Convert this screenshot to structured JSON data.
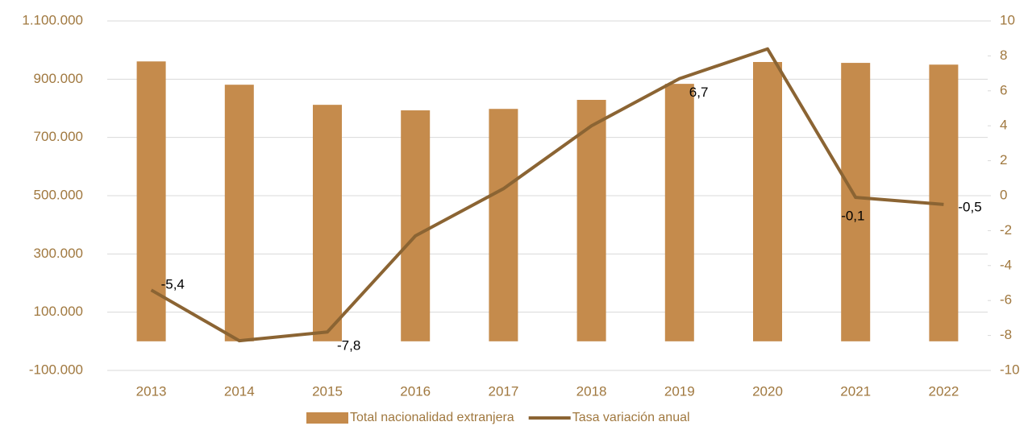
{
  "chart_data": {
    "type": "bar-line",
    "categories": [
      "2013",
      "2014",
      "2015",
      "2016",
      "2017",
      "2018",
      "2019",
      "2020",
      "2021",
      "2022"
    ],
    "series": [
      {
        "name": "Total nacionalidad extranjera",
        "color": "#c58b4c",
        "type": "bar",
        "values": [
          961000,
          881000,
          812000,
          793000,
          798000,
          829000,
          884000,
          959000,
          956000,
          950000
        ]
      },
      {
        "name": "Tasa variación anual",
        "color": "#8b6433",
        "type": "line",
        "axis": "y2",
        "values": [
          -5.4,
          -8.3,
          -7.8,
          -2.3,
          0.4,
          4.0,
          6.7,
          8.4,
          -0.1,
          -0.5
        ],
        "value_labels": [
          "-5,4",
          null,
          "-7,8",
          null,
          null,
          null,
          "6,7",
          null,
          "-0,1",
          "-0,5"
        ]
      }
    ],
    "ylim": [
      -100000,
      1100000
    ],
    "yticks": [
      {
        "value": -100000,
        "label": "-100.000"
      },
      {
        "value": 100000,
        "label": "100.000"
      },
      {
        "value": 300000,
        "label": "300.000"
      },
      {
        "value": 500000,
        "label": "500.000"
      },
      {
        "value": 700000,
        "label": "700.000"
      },
      {
        "value": 900000,
        "label": "900.000"
      },
      {
        "value": 1100000,
        "label": "1.100.000"
      }
    ],
    "y2lim": [
      -10,
      10
    ],
    "y2ticks": [
      -10,
      -8,
      -6,
      -4,
      -2,
      0,
      2,
      4,
      6,
      8,
      10
    ],
    "grid": true,
    "legend": "bottom"
  }
}
